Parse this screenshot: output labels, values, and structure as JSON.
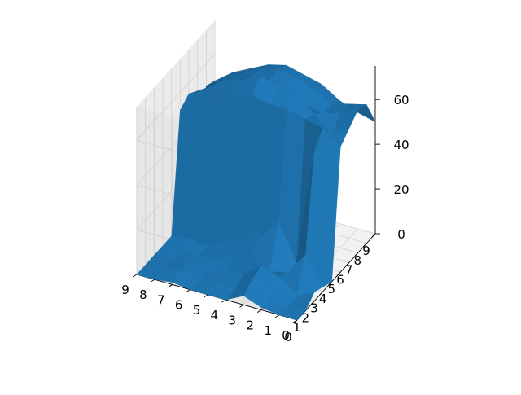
{
  "chart_data": {
    "type": "surface",
    "title": "",
    "xlabel": "",
    "ylabel": "",
    "zlabel": "",
    "x": [
      0,
      1,
      2,
      3,
      4,
      5,
      6,
      7,
      8,
      9
    ],
    "y": [
      0,
      1,
      2,
      3,
      4,
      5,
      6,
      7,
      8,
      9
    ],
    "x_tick_labels": [
      "0",
      "1",
      "2",
      "3",
      "4",
      "5",
      "6",
      "7",
      "8",
      "9"
    ],
    "y_tick_labels": [
      "0",
      "1",
      "2",
      "3",
      "4",
      "5",
      "6",
      "7",
      "8",
      "9"
    ],
    "z_tick_labels": [
      "0",
      "20",
      "40",
      "60"
    ],
    "zlim": [
      0,
      75
    ],
    "surface_color": "#1f77b4",
    "grid": true,
    "z": [
      [
        0,
        0,
        1,
        4,
        0,
        0,
        0,
        1,
        0,
        0
      ],
      [
        0,
        0,
        3,
        7,
        0,
        1,
        0,
        2,
        1,
        0
      ],
      [
        4,
        0,
        6,
        9,
        3,
        0,
        0,
        1,
        0,
        0
      ],
      [
        2,
        14,
        4,
        2,
        7,
        4,
        1,
        0,
        0,
        0
      ],
      [
        0,
        56,
        4,
        20,
        10,
        7,
        4,
        0,
        1,
        0
      ],
      [
        56,
        62,
        64,
        66,
        66,
        68,
        66,
        60,
        55,
        52
      ],
      [
        60,
        56,
        62,
        70,
        70,
        72,
        68,
        66,
        60,
        55
      ],
      [
        64,
        60,
        58,
        60,
        64,
        66,
        65,
        62,
        58,
        25
      ],
      [
        62,
        60,
        58,
        62,
        65,
        66,
        64,
        60,
        55,
        50
      ],
      [
        50,
        52,
        55,
        60,
        62,
        64,
        62,
        58,
        54,
        48
      ]
    ]
  }
}
